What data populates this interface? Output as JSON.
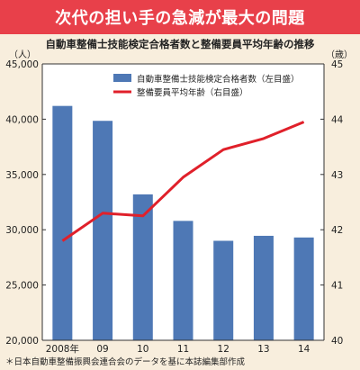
{
  "banner": {
    "title": "次代の担い手の急減が最大の問題"
  },
  "chart_data": {
    "type": "bar+line",
    "subtitle": "自動車整備士技能検定合格者数と整備要員平均年齢の推移",
    "categories": [
      "2008年",
      "09",
      "10",
      "11",
      "12",
      "13",
      "14"
    ],
    "series": [
      {
        "name": "自動車整備士技能検定合格者数（左目盛）",
        "type": "bar",
        "axis": "left",
        "color": "#4e78b5",
        "values": [
          41200,
          39850,
          33200,
          30800,
          29000,
          29450,
          29300
        ]
      },
      {
        "name": "整備要員平均年齢（右目盛）",
        "type": "line",
        "axis": "right",
        "color": "#e0202a",
        "values": [
          41.8,
          42.3,
          42.25,
          42.95,
          43.45,
          43.65,
          43.95
        ]
      }
    ],
    "y_left": {
      "unit": "（人）",
      "min": 20000,
      "max": 45000,
      "ticks": [
        20000,
        25000,
        30000,
        35000,
        40000,
        45000
      ],
      "tick_labels": [
        "20,000",
        "25,000",
        "30,000",
        "35,000",
        "40,000",
        "45,000"
      ]
    },
    "y_right": {
      "unit": "（歳）",
      "min": 40,
      "max": 45,
      "ticks": [
        40,
        41,
        42,
        43,
        44,
        45
      ],
      "tick_labels": [
        "40",
        "41",
        "42",
        "43",
        "44",
        "45"
      ]
    },
    "legend": {
      "position": "top-left"
    },
    "grid": false
  },
  "footnote": "＊日本自動車整備振興会連合会のデータを基に本誌編集部作成"
}
